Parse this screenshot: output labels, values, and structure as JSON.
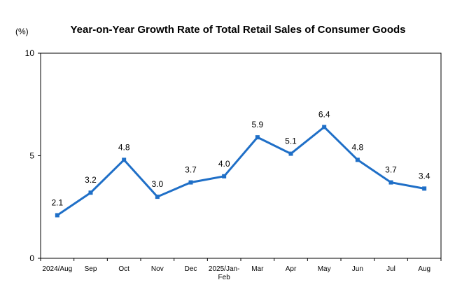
{
  "chart_data": {
    "type": "line",
    "title": "Year-on-Year Growth Rate of Total Retail Sales of Consumer Goods",
    "unit_label": "(%)",
    "xlabel": "",
    "ylabel": "",
    "categories": [
      "2024/Aug",
      "Sep",
      "Oct",
      "Nov",
      "Dec",
      "2025/Jan-Feb",
      "Mar",
      "Apr",
      "May",
      "Jun",
      "Jul",
      "Aug"
    ],
    "category_lines": [
      [
        "2024/Aug"
      ],
      [
        "Sep"
      ],
      [
        "Oct"
      ],
      [
        "Nov"
      ],
      [
        "Dec"
      ],
      [
        "2025/Jan-",
        "Feb"
      ],
      [
        "Mar"
      ],
      [
        "Apr"
      ],
      [
        "May"
      ],
      [
        "Jun"
      ],
      [
        "Jul"
      ],
      [
        "Aug"
      ]
    ],
    "values": [
      2.1,
      3.2,
      4.8,
      3.0,
      3.7,
      4.0,
      5.9,
      5.1,
      6.4,
      4.8,
      3.7,
      3.4
    ],
    "data_labels": [
      "2.1",
      "3.2",
      "4.8",
      "3.0",
      "3.7",
      "4.0",
      "5.9",
      "5.1",
      "6.4",
      "4.8",
      "3.7",
      "3.4"
    ],
    "ylim": [
      0,
      10
    ],
    "yticks": [
      0,
      5,
      10
    ],
    "ytick_labels": [
      "0",
      "5",
      "10"
    ],
    "grid": false,
    "legend": "none",
    "colors": {
      "line": "#1f6fc7",
      "axis": "#000000",
      "text": "#000000"
    }
  }
}
